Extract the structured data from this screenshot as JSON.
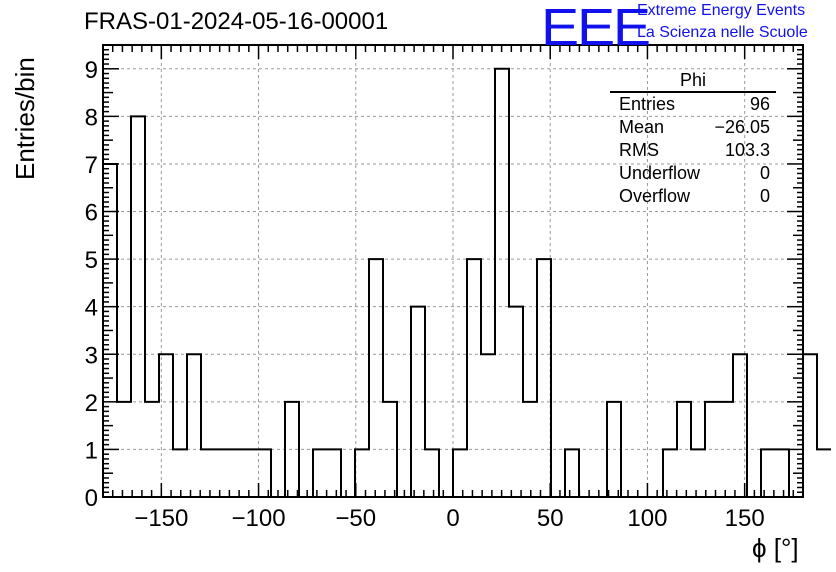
{
  "title": "FRAS-01-2024-05-16-00001",
  "logo": {
    "mark": "EEE",
    "line1": "Extreme Energy Events",
    "line2": "La Scienza nelle Scuole",
    "color": "#1111ee"
  },
  "stats": {
    "name": "Phi",
    "rows": [
      {
        "label": "Entries",
        "value": "96"
      },
      {
        "label": "Mean",
        "value": "−26.05"
      },
      {
        "label": "RMS",
        "value": "103.3"
      },
      {
        "label": "Underflow",
        "value": "0"
      },
      {
        "label": "Overflow",
        "value": "0"
      }
    ]
  },
  "chart_data": {
    "type": "bar",
    "histogram": true,
    "xlabel": "ϕ [°]",
    "ylabel": "Entries/bin",
    "xlim": [
      -180,
      180
    ],
    "ylim": [
      0,
      9.5
    ],
    "bin_width": 7.2,
    "x_ticks": [
      -150,
      -100,
      -50,
      0,
      50,
      100,
      150
    ],
    "x_tick_labels": [
      "−150",
      "−100",
      "−50",
      "0",
      "50",
      "100",
      "150"
    ],
    "y_ticks": [
      0,
      1,
      2,
      3,
      4,
      5,
      6,
      7,
      8,
      9
    ],
    "y_tick_labels": [
      "0",
      "1",
      "2",
      "3",
      "4",
      "5",
      "6",
      "7",
      "8",
      "9"
    ],
    "values": [
      7,
      2,
      8,
      2,
      3,
      1,
      3,
      1,
      1,
      1,
      1,
      1,
      0,
      2,
      0,
      1,
      1,
      0,
      1,
      5,
      2,
      0,
      4,
      1,
      0,
      1,
      5,
      3,
      9,
      4,
      2,
      5,
      0,
      1,
      0,
      0,
      2,
      0,
      0,
      0,
      1,
      2,
      1,
      2,
      2,
      3,
      0,
      1,
      1,
      0,
      3,
      1
    ],
    "grid": true,
    "line_color": "#000000"
  }
}
